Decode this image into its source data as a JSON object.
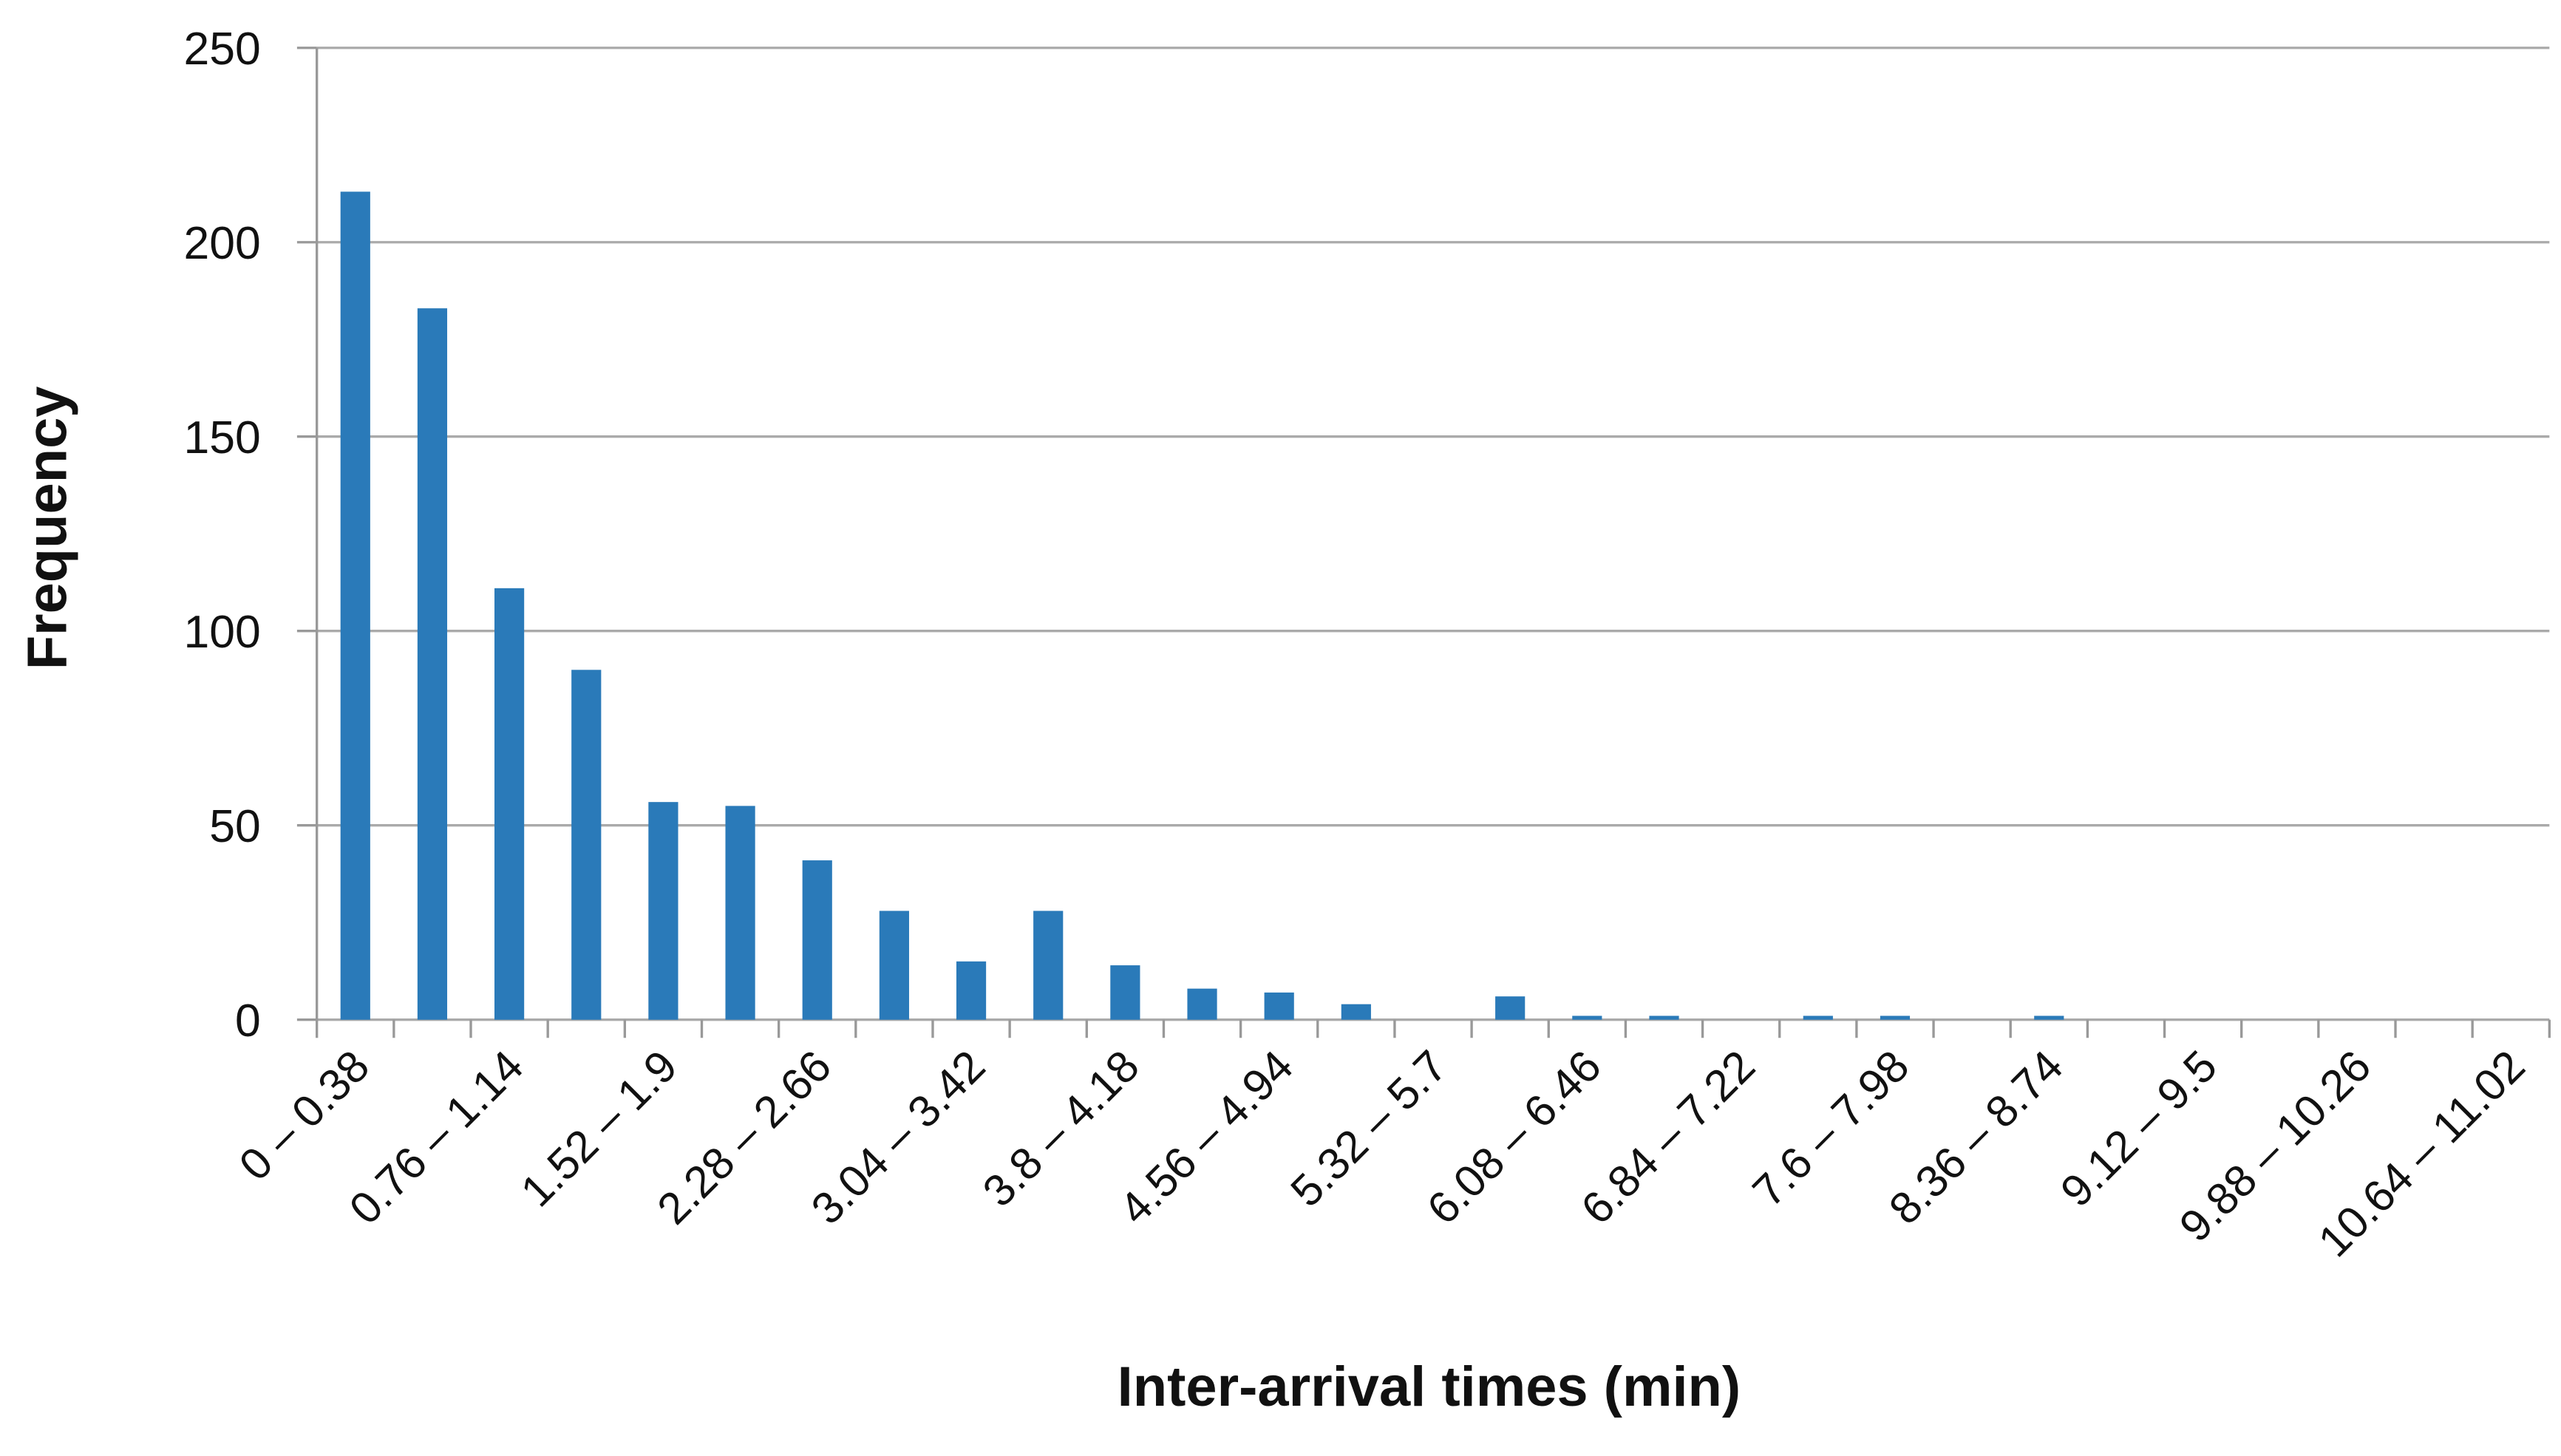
{
  "chart_data": {
    "type": "bar",
    "x_label": "Inter-arrival times (min)",
    "y_label": "Frequency",
    "categories": [
      "0 – 0.38",
      null,
      "0.76 – 1.14",
      null,
      "1.52 – 1.9",
      null,
      "2.28 – 2.66",
      null,
      "3.04 – 3.42",
      null,
      "3.8 – 4.18",
      null,
      "4.56 – 4.94",
      null,
      "5.32 – 5.7",
      null,
      "6.08 – 6.46",
      null,
      "6.84 – 7.22",
      null,
      "7.6 – 7.98",
      null,
      "8.36 – 8.74",
      null,
      "9.12 – 9.5",
      null,
      "9.88 – 10.26",
      null,
      "10.64 – 11.02"
    ],
    "values": [
      213,
      183,
      111,
      90,
      56,
      55,
      41,
      28,
      15,
      28,
      14,
      8,
      7,
      4,
      0,
      6,
      1,
      1,
      0,
      1,
      1,
      0,
      1,
      0,
      0,
      0,
      0,
      0,
      0
    ],
    "color": "#2a7ab9",
    "ylim": [
      0,
      250
    ],
    "yticks": [
      0,
      50,
      100,
      150,
      200,
      250
    ],
    "grid": true
  }
}
